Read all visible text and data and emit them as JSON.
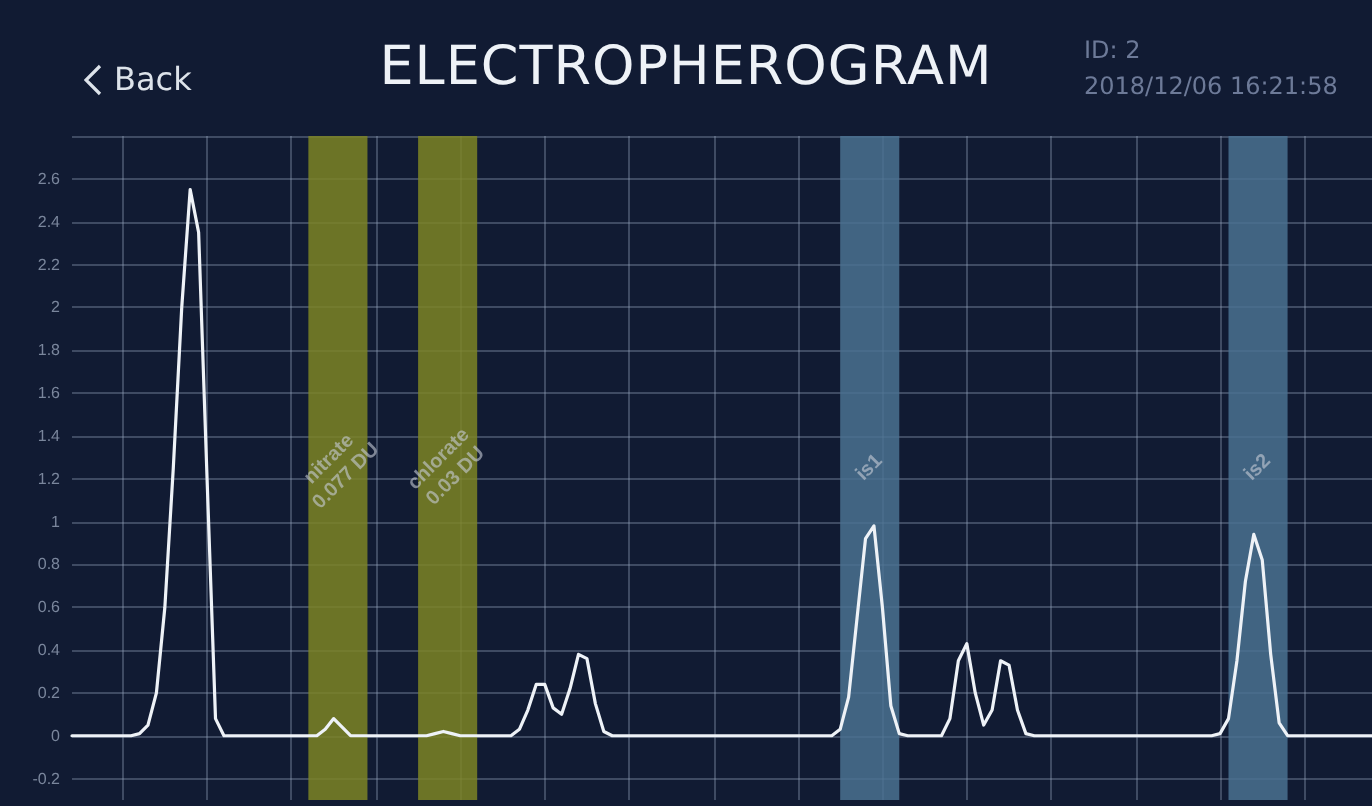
{
  "chart_data": {
    "type": "line",
    "title": "ELECTROPHEROGRAM",
    "annotations": [
      "Back",
      "ID: 2",
      "2018/12/06 16:21:58",
      "nitrate\n0.077 DU",
      "chlorate\n0.03 DU",
      "is1",
      "is2"
    ],
    "categories": [
      null,
      null,
      null,
      null,
      null,
      null,
      null,
      null,
      null,
      null,
      null,
      null,
      null,
      null,
      null,
      null,
      null,
      null,
      null,
      null,
      null,
      null,
      null,
      null,
      null,
      null,
      null,
      null,
      null,
      null,
      null,
      null,
      null,
      null,
      null,
      null,
      null,
      null,
      null,
      null,
      null,
      null,
      null,
      null,
      null,
      null,
      null,
      null,
      null,
      null,
      null,
      null,
      null,
      null,
      null,
      null,
      null,
      null,
      null,
      null,
      null,
      null,
      null,
      null,
      null,
      null,
      null,
      null,
      null,
      null,
      null,
      null,
      null,
      null,
      null,
      null,
      null,
      null,
      null,
      null,
      null,
      null,
      null,
      null,
      null,
      null,
      null,
      null,
      null,
      null,
      null,
      null,
      null,
      null,
      null,
      null,
      null,
      null,
      null,
      null,
      null,
      null,
      null,
      null,
      null,
      null,
      null,
      null,
      null,
      null,
      null,
      null,
      null,
      null,
      null,
      null,
      null,
      null,
      null,
      null,
      null,
      null,
      null,
      null,
      null,
      null,
      null,
      null,
      null,
      null,
      null,
      null,
      null,
      null,
      null,
      null,
      null,
      null,
      null,
      null,
      null,
      null,
      null,
      null,
      null,
      null,
      null,
      null,
      null,
      null,
      null,
      null,
      null,
      null,
      null
    ],
    "series": [
      {
        "color": "#eef2f7",
        "values": [
          0,
          0,
          0,
          0,
          0,
          0,
          0,
          0,
          0.01,
          0.05,
          0.2,
          0.6,
          1.25,
          2.0,
          2.55,
          2.35,
          1.2,
          0.08,
          0,
          0,
          0,
          0,
          0,
          0,
          0,
          0,
          0,
          0,
          0,
          0,
          0.03,
          0.08,
          0.04,
          0,
          0,
          0,
          0,
          0,
          0,
          0,
          0,
          0,
          0,
          0.01,
          0.02,
          0.01,
          0,
          0,
          0,
          0,
          0,
          0,
          0,
          0.03,
          0.12,
          0.24,
          0.24,
          0.13,
          0.1,
          0.22,
          0.38,
          0.36,
          0.15,
          0.02,
          0,
          0,
          0,
          0,
          0,
          0,
          0,
          0,
          0,
          0,
          0,
          0,
          0,
          0,
          0,
          0,
          0,
          0,
          0,
          0,
          0,
          0,
          0,
          0,
          0,
          0,
          0,
          0.03,
          0.18,
          0.55,
          0.92,
          0.98,
          0.6,
          0.14,
          0.01,
          0,
          0,
          0,
          0,
          0,
          0.08,
          0.35,
          0.43,
          0.2,
          0.05,
          0.12,
          0.35,
          0.33,
          0.12,
          0.01,
          0,
          0,
          0,
          0,
          0,
          0,
          0,
          0,
          0,
          0,
          0,
          0,
          0,
          0,
          0,
          0,
          0,
          0,
          0,
          0,
          0,
          0,
          0.01,
          0.08,
          0.35,
          0.72,
          0.94,
          0.82,
          0.38,
          0.06,
          0,
          0,
          0,
          0,
          0,
          0,
          0,
          0,
          0,
          0,
          0
        ]
      }
    ],
    "ylim": [
      -0.3,
      2.8
    ],
    "yticks": [
      -0.2,
      0,
      0.2,
      0.4,
      0.6,
      0.8,
      1,
      1.2,
      1.4,
      1.6,
      1.8,
      2,
      2.2,
      2.4,
      2.6,
      {
        "value": 2.8,
        "label": null
      }
    ],
    "tick_labels": "y",
    "grid": true,
    "line_style": "solid"
  }
}
